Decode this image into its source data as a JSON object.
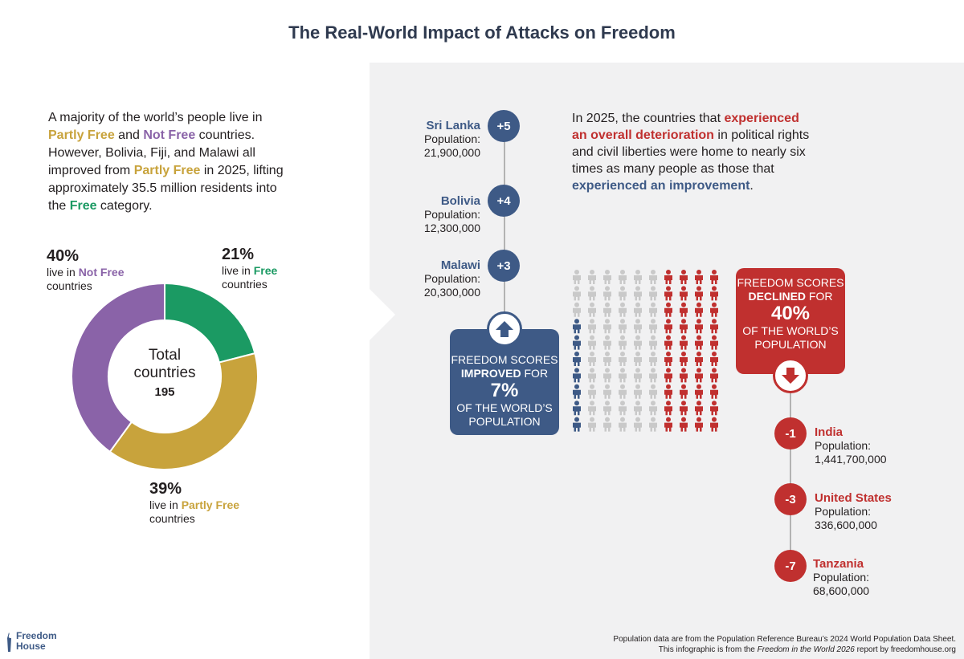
{
  "title": "The Real-World Impact of Attacks on Freedom",
  "intro": {
    "p1": "A majority of the world’s people live in ",
    "partly_free": "Partly Free",
    "p2": " and ",
    "not_free": "Not Free",
    "p3": " countries. However, Bolivia, Fiji, and Malawi all improved from ",
    "p4": " in 2025, lifting approximately 35.5 million residents into the ",
    "free": "Free",
    "p5": " category."
  },
  "donut": {
    "center_label_1": "Total",
    "center_label_2": "countries",
    "center_value": "195",
    "not_free": {
      "pct": "40%",
      "line1": "live in ",
      "status": "Not Free",
      "line2": "countries"
    },
    "free": {
      "pct": "21%",
      "line1": "live in ",
      "status": "Free",
      "line2": "countries"
    },
    "partly_free": {
      "pct": "39%",
      "line1": "live in ",
      "status": "Partly Free",
      "line2": "countries"
    }
  },
  "chart_data": {
    "type": "pie",
    "title": "",
    "categories": [
      "Free",
      "Partly Free",
      "Not Free"
    ],
    "values": [
      21,
      39,
      40
    ],
    "unit": "%",
    "total_label": "Total countries",
    "total": 195,
    "colors": [
      "#1b9a63",
      "#c8a33c",
      "#8a63a8"
    ]
  },
  "improved": [
    {
      "name": "Sri Lanka",
      "change": "+5",
      "pop_label": "Population:",
      "pop": "21,900,000"
    },
    {
      "name": "Bolivia",
      "change": "+4",
      "pop_label": "Population:",
      "pop": "12,300,000"
    },
    {
      "name": "Malawi",
      "change": "+3",
      "pop_label": "Population:",
      "pop": "20,300,000"
    }
  ],
  "declined": [
    {
      "name": "India",
      "change": "-1",
      "pop_label": "Population:",
      "pop": "1,441,700,000"
    },
    {
      "name": "United States",
      "change": "-3",
      "pop_label": "Population:",
      "pop": "336,600,000"
    },
    {
      "name": "Tanzania",
      "change": "-7",
      "pop_label": "Population:",
      "pop": "68,600,000"
    }
  ],
  "statement": {
    "s1": "In 2025, the countries that ",
    "det": "experienced an overall deterioration",
    "s2": " in political rights and civil liberties were home to nearly six times as many people as those that ",
    "imp": "experienced an improvement",
    "s3": "."
  },
  "improved_box": {
    "l1": "Freedom scores",
    "l2a": "improved",
    "l2b": " for",
    "big": "7%",
    "l3": "of the world’s",
    "l4": "population"
  },
  "declined_box": {
    "l1": "Freedom scores",
    "l2a": "declined",
    "l2b": " for",
    "big": "40%",
    "l3": "of the world’s",
    "l4": "population"
  },
  "pictogram": {
    "rows": 10,
    "cols": 10,
    "improved_share": 0.07,
    "declined_share": 0.4,
    "colors": {
      "improved": "#3e5a86",
      "declined": "#c0302f",
      "neutral": "#c9c9c9"
    }
  },
  "footer": {
    "line1": "Population data are from the Population Reference Bureau’s 2024 World Population Data Sheet.",
    "line2a": "This infographic is from the ",
    "line2b": "Freedom in the World 2026",
    "line2c": " report by ",
    "line2d": "freedomhouse.org"
  },
  "logo": {
    "line1": "Freedom",
    "line2": "House"
  }
}
